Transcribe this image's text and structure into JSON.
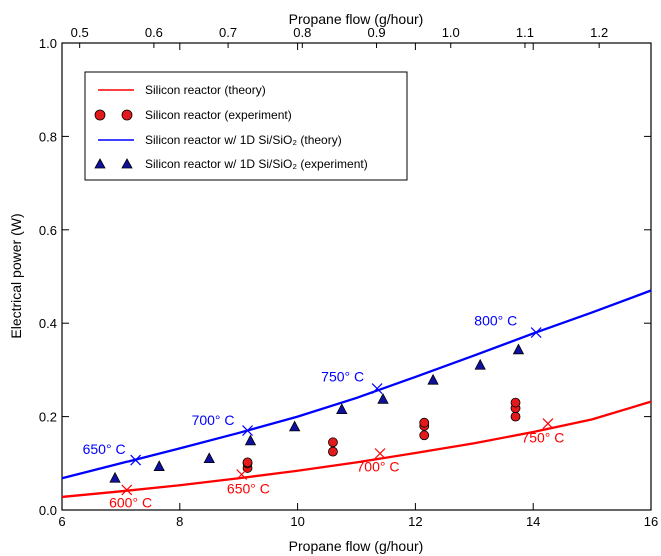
{
  "chart_data": {
    "type": "line",
    "xlabel": "Propane flow (g/hour)",
    "x2label": "Propane flow (g/hour)",
    "ylabel": "Electrical power (W)",
    "xlim": [
      6,
      16
    ],
    "ylim": [
      0,
      1.0
    ],
    "xticks": [
      6,
      8,
      10,
      12,
      14,
      16
    ],
    "yticks": [
      0.0,
      0.2,
      0.4,
      0.6,
      0.8,
      1.0
    ],
    "x2ticks": [
      0.5,
      0.6,
      0.7,
      0.8,
      0.9,
      1.0,
      1.1,
      1.2
    ],
    "x2_to_x_factor": 12.6,
    "grid": false,
    "legend_position": "top-left",
    "colors": {
      "silicon": "#ff0000",
      "silicon_1d": "#0000ff",
      "marker_red": "#e31a1c",
      "marker_blue": "#1010a0"
    },
    "series": [
      {
        "name": "Silicon reactor (theory)",
        "kind": "line",
        "color": "#ff0000",
        "x": [
          6,
          7,
          8,
          9,
          10,
          11,
          12,
          13,
          14,
          15,
          16
        ],
        "y": [
          0.028,
          0.04,
          0.053,
          0.068,
          0.084,
          0.102,
          0.122,
          0.143,
          0.167,
          0.194,
          0.232
        ]
      },
      {
        "name": "Silicon reactor (experiment)",
        "kind": "scatter",
        "marker": "circle",
        "color": "#e31a1c",
        "x": [
          9.15,
          9.15,
          9.15,
          10.6,
          10.6,
          12.15,
          12.15,
          12.15,
          13.7,
          13.7,
          13.7
        ],
        "y": [
          0.09,
          0.1,
          0.102,
          0.145,
          0.125,
          0.16,
          0.18,
          0.187,
          0.2,
          0.218,
          0.23
        ]
      },
      {
        "name": "Silicon reactor w/ 1D Si/SiO₂ (theory)",
        "kind": "line",
        "color": "#0000ff",
        "x": [
          6,
          7,
          8,
          9,
          10,
          11,
          12,
          13,
          14,
          15,
          16
        ],
        "y": [
          0.068,
          0.1,
          0.132,
          0.165,
          0.2,
          0.24,
          0.285,
          0.331,
          0.378,
          0.423,
          0.47
        ]
      },
      {
        "name": "Silicon reactor w/ 1D Si/SiO₂ (experiment)",
        "kind": "scatter",
        "marker": "triangle",
        "color": "#1010a0",
        "x": [
          6.9,
          7.65,
          8.5,
          9.2,
          9.95,
          10.75,
          11.45,
          12.3,
          13.1,
          13.75
        ],
        "y": [
          0.068,
          0.093,
          0.11,
          0.148,
          0.178,
          0.215,
          0.237,
          0.278,
          0.31,
          0.343
        ]
      }
    ],
    "markers_x": [
      {
        "x": 7.1,
        "y": 0.043,
        "color": "#ff0000"
      },
      {
        "x": 9.05,
        "y": 0.076,
        "color": "#ff0000"
      },
      {
        "x": 11.4,
        "y": 0.121,
        "color": "#ff0000"
      },
      {
        "x": 14.25,
        "y": 0.185,
        "color": "#ff0000"
      },
      {
        "x": 7.25,
        "y": 0.107,
        "color": "#0000ff"
      },
      {
        "x": 9.15,
        "y": 0.17,
        "color": "#0000ff"
      },
      {
        "x": 11.35,
        "y": 0.26,
        "color": "#0000ff"
      },
      {
        "x": 14.05,
        "y": 0.38,
        "color": "#0000ff"
      }
    ],
    "annotations": [
      {
        "text": "600° C",
        "x": 6.8,
        "y": 0.005,
        "color": "#ff0000"
      },
      {
        "text": "650° C",
        "x": 8.8,
        "y": 0.035,
        "color": "#ff0000"
      },
      {
        "text": "700° C",
        "x": 11.0,
        "y": 0.082,
        "color": "#ff0000"
      },
      {
        "text": "750° C",
        "x": 13.8,
        "y": 0.145,
        "color": "#ff0000"
      },
      {
        "text": "650° C",
        "x": 6.35,
        "y": 0.12,
        "color": "#0000ff"
      },
      {
        "text": "700° C",
        "x": 8.2,
        "y": 0.182,
        "color": "#0000ff"
      },
      {
        "text": "750° C",
        "x": 10.4,
        "y": 0.275,
        "color": "#0000ff"
      },
      {
        "text": "800° C",
        "x": 13.0,
        "y": 0.395,
        "color": "#0000ff"
      }
    ]
  }
}
